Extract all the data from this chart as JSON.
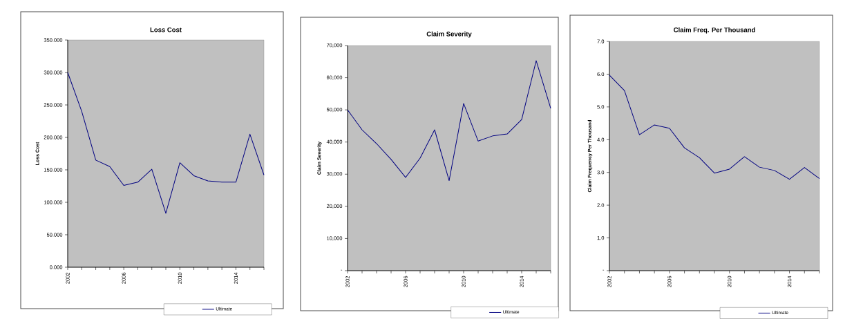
{
  "chart_data": [
    {
      "type": "line",
      "title": "Loss Cost",
      "ylabel": "Loss Cost",
      "x": [
        2002,
        2003,
        2004,
        2005,
        2006,
        2007,
        2008,
        2009,
        2010,
        2011,
        2012,
        2013,
        2014,
        2015,
        2016
      ],
      "series": [
        {
          "name": "Ultimate",
          "color": "#000080",
          "values": [
            300,
            240,
            165,
            155,
            126,
            131,
            151,
            83,
            161,
            141,
            133,
            131,
            131,
            205,
            142
          ]
        }
      ],
      "xlim": [
        2002,
        2016
      ],
      "xticks": [
        2002,
        {
          "value": 2003,
          "label": null
        },
        {
          "value": 2004,
          "label": null
        },
        {
          "value": 2005,
          "label": null
        },
        2006,
        {
          "value": 2007,
          "label": null
        },
        {
          "value": 2008,
          "label": null
        },
        {
          "value": 2009,
          "label": null
        },
        2010,
        {
          "value": 2011,
          "label": null
        },
        {
          "value": 2012,
          "label": null
        },
        {
          "value": 2013,
          "label": null
        },
        2014,
        {
          "value": 2015,
          "label": null
        },
        {
          "value": 2016,
          "label": null
        }
      ],
      "ylim": [
        0,
        350
      ],
      "yticks": [
        {
          "value": 0,
          "label": "0.000"
        },
        {
          "value": 50,
          "label": "50.000"
        },
        {
          "value": 100,
          "label": "100.000"
        },
        {
          "value": 150,
          "label": "150.000"
        },
        {
          "value": 200,
          "label": "200.000"
        },
        {
          "value": 250,
          "label": "250.000"
        },
        {
          "value": 300,
          "label": "300.000"
        },
        {
          "value": 350,
          "label": "350.000"
        }
      ],
      "legend": "bottom right",
      "marker": "none"
    },
    {
      "type": "line",
      "title": "Claim Severity",
      "ylabel": "Claim Severity",
      "x": [
        2002,
        2003,
        2004,
        2005,
        2006,
        2007,
        2008,
        2009,
        2010,
        2011,
        2012,
        2013,
        2014,
        2015,
        2016
      ],
      "series": [
        {
          "name": "Ultimate",
          "color": "#000080",
          "values": [
            50000,
            43800,
            39500,
            34600,
            29000,
            35000,
            43800,
            28000,
            52000,
            40300,
            41900,
            42500,
            47000,
            65300,
            50500
          ]
        }
      ],
      "xlim": [
        2002,
        2016
      ],
      "xticks": [
        2002,
        {
          "value": 2003,
          "label": null
        },
        {
          "value": 2004,
          "label": null
        },
        {
          "value": 2005,
          "label": null
        },
        2006,
        {
          "value": 2007,
          "label": null
        },
        {
          "value": 2008,
          "label": null
        },
        {
          "value": 2009,
          "label": null
        },
        2010,
        {
          "value": 2011,
          "label": null
        },
        {
          "value": 2012,
          "label": null
        },
        {
          "value": 2013,
          "label": null
        },
        2014,
        {
          "value": 2015,
          "label": null
        },
        {
          "value": 2016,
          "label": null
        }
      ],
      "ylim": [
        0,
        70000
      ],
      "yticks": [
        {
          "value": 0,
          "label": "-"
        },
        {
          "value": 10000,
          "label": "10,000"
        },
        {
          "value": 20000,
          "label": "20,000"
        },
        {
          "value": 30000,
          "label": "30,000"
        },
        {
          "value": 40000,
          "label": "40,000"
        },
        {
          "value": 50000,
          "label": "50,000"
        },
        {
          "value": 60000,
          "label": "60,000"
        },
        {
          "value": 70000,
          "label": "70,000"
        }
      ],
      "legend": "bottom right",
      "marker": "none"
    },
    {
      "type": "line",
      "title": "Claim Freq. Per Thousand",
      "ylabel": "Claim Frequency Per Thousand",
      "x": [
        2002,
        2003,
        2004,
        2005,
        2006,
        2007,
        2008,
        2009,
        2010,
        2011,
        2012,
        2013,
        2014,
        2015,
        2016
      ],
      "series": [
        {
          "name": "Ultimate",
          "color": "#000080",
          "values": [
            5.97,
            5.5,
            4.15,
            4.45,
            4.35,
            3.75,
            3.45,
            2.98,
            3.1,
            3.48,
            3.16,
            3.06,
            2.79,
            3.15,
            2.81
          ]
        }
      ],
      "xlim": [
        2002,
        2016
      ],
      "xticks": [
        2002,
        {
          "value": 2003,
          "label": null
        },
        {
          "value": 2004,
          "label": null
        },
        {
          "value": 2005,
          "label": null
        },
        2006,
        {
          "value": 2007,
          "label": null
        },
        {
          "value": 2008,
          "label": null
        },
        {
          "value": 2009,
          "label": null
        },
        2010,
        {
          "value": 2011,
          "label": null
        },
        {
          "value": 2012,
          "label": null
        },
        {
          "value": 2013,
          "label": null
        },
        2014,
        {
          "value": 2015,
          "label": null
        },
        {
          "value": 2016,
          "label": null
        }
      ],
      "ylim": [
        0,
        7
      ],
      "yticks": [
        {
          "value": 0,
          "label": "-"
        },
        {
          "value": 1,
          "label": "1.0"
        },
        {
          "value": 2,
          "label": "2.0"
        },
        {
          "value": 3,
          "label": "3.0"
        },
        {
          "value": 4,
          "label": "4.0"
        },
        {
          "value": 5,
          "label": "5.0"
        },
        {
          "value": 6,
          "label": "6.0"
        },
        {
          "value": 7,
          "label": "7.0"
        }
      ],
      "legend": "bottom right",
      "marker": "none"
    }
  ]
}
